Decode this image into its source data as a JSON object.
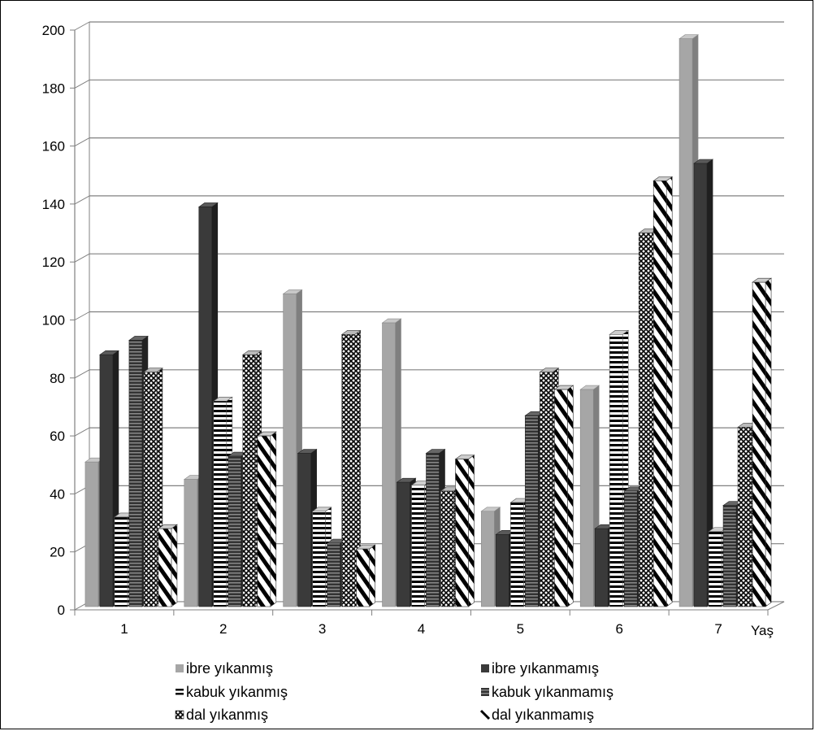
{
  "chart_data": {
    "type": "bar",
    "title": "",
    "xlabel": "Yaş",
    "ylabel": "",
    "ylim": [
      0,
      200
    ],
    "yticks": [
      0,
      20,
      40,
      60,
      80,
      100,
      120,
      140,
      160,
      180,
      200
    ],
    "categories": [
      "1",
      "2",
      "3",
      "4",
      "5",
      "6",
      "7"
    ],
    "grid": true,
    "legend_position": "bottom",
    "series": [
      {
        "name": "ibre yıkanmış",
        "pattern": "solid-light",
        "color": "#a6a6a6",
        "values": [
          51,
          45,
          109,
          99,
          34,
          76,
          197
        ]
      },
      {
        "name": "ibre yıkanmamış",
        "pattern": "solid-dark",
        "color": "#3a3a3a",
        "values": [
          88,
          139,
          54,
          44,
          26,
          28,
          154
        ]
      },
      {
        "name": "kabuk yıkanmış",
        "pattern": "horizontal-lines",
        "color": "#000000",
        "values": [
          32,
          72,
          34,
          43,
          37,
          95,
          27
        ]
      },
      {
        "name": "kabuk yıkanmamış",
        "pattern": "dark-lines",
        "color": "#333333",
        "values": [
          93,
          53,
          23,
          54,
          67,
          41,
          36
        ]
      },
      {
        "name": "dal yıkanmış",
        "pattern": "crosshatch",
        "color": "#000000",
        "values": [
          82,
          88,
          95,
          41,
          82,
          130,
          63
        ]
      },
      {
        "name": "dal yıkanmamış",
        "pattern": "diagonal-stripes",
        "color": "#000000",
        "values": [
          28,
          60,
          21,
          52,
          76,
          148,
          113
        ]
      }
    ]
  }
}
